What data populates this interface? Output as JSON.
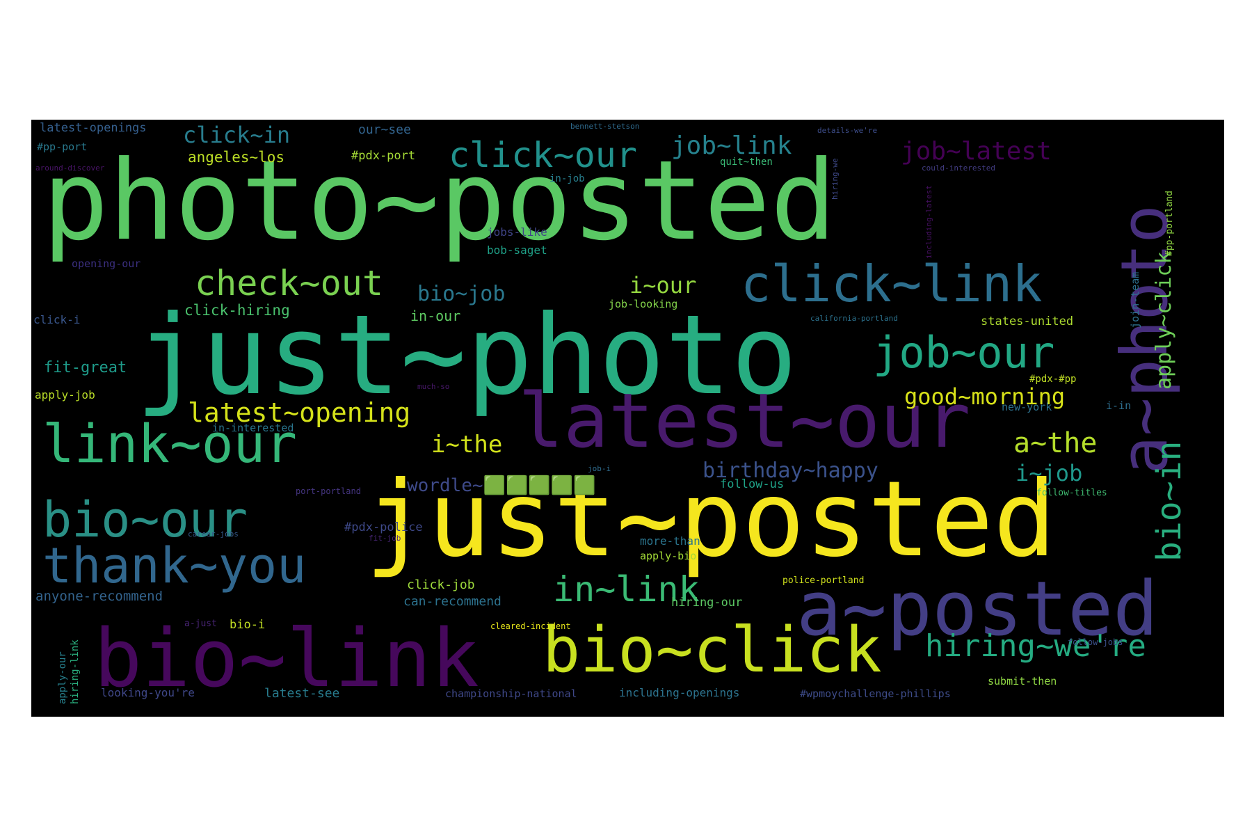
{
  "colors": {
    "background": "#000000",
    "page": "#ffffff"
  },
  "words": [
    {
      "text": "photo~posted",
      "color": "#5ac864"
    },
    {
      "text": "just~photo",
      "color": "#27ad81"
    },
    {
      "text": "just~posted",
      "color": "#f5e61e"
    },
    {
      "text": "latest~our",
      "color": "#481a6c"
    },
    {
      "text": "bio~link",
      "color": "#46085c"
    },
    {
      "text": "a~posted",
      "color": "#433e85"
    },
    {
      "text": "a~photo",
      "color": "#472f7d"
    },
    {
      "text": "bio~click",
      "color": "#c8e020"
    },
    {
      "text": "click~link",
      "color": "#2d6f8e"
    },
    {
      "text": "link~our",
      "color": "#35b779"
    },
    {
      "text": "bio~our",
      "color": "#2a9086"
    },
    {
      "text": "thank~you",
      "color": "#31678e"
    },
    {
      "text": "job~our",
      "color": "#22a884"
    },
    {
      "text": "check~out",
      "color": "#7ad151"
    },
    {
      "text": "click~our",
      "color": "#21918c"
    },
    {
      "text": "in~link",
      "color": "#3bbb75"
    },
    {
      "text": "hiring~we're",
      "color": "#25ac82"
    },
    {
      "text": "latest~opening",
      "color": "#d5e21a"
    },
    {
      "text": "good~morning",
      "color": "#d8e219"
    },
    {
      "text": "bio~in",
      "color": "#29af7f"
    },
    {
      "text": "apply~click",
      "color": "#6ece58"
    },
    {
      "text": "job~latest",
      "color": "#440154"
    },
    {
      "text": "job~link",
      "color": "#26828e"
    },
    {
      "text": "click~in",
      "color": "#287d8e"
    },
    {
      "text": "bio~job",
      "color": "#2a788e"
    },
    {
      "text": "i~our",
      "color": "#95d840"
    },
    {
      "text": "a~the",
      "color": "#b5de2b"
    },
    {
      "text": "i~the",
      "color": "#d2e21b"
    },
    {
      "text": "i~job",
      "color": "#1f988b"
    },
    {
      "text": "birthday~happy",
      "color": "#3b528b"
    },
    {
      "text": "wordle~🟩🟩🟩🟩🟩",
      "color": "#3e4a89"
    },
    {
      "text": "latest-openings",
      "color": "#355f8d"
    },
    {
      "text": "our~see",
      "color": "#32648e"
    },
    {
      "text": "angeles~los",
      "color": "#bddf26"
    },
    {
      "text": "#pdx-port",
      "color": "#a5db36"
    },
    {
      "text": "#pp-port",
      "color": "#29798e"
    },
    {
      "text": "around-discover",
      "color": "#481467"
    },
    {
      "text": "in-job",
      "color": "#277f8e"
    },
    {
      "text": "quit~then",
      "color": "#3aba76"
    },
    {
      "text": "jobs-like",
      "color": "#404588"
    },
    {
      "text": "bob-saget",
      "color": "#1fa188"
    },
    {
      "text": "opening-our",
      "color": "#3b2f80"
    },
    {
      "text": "click-hiring",
      "color": "#4ac16d"
    },
    {
      "text": "click-i",
      "color": "#39568c"
    },
    {
      "text": "in-our",
      "color": "#5ec962"
    },
    {
      "text": "job-looking",
      "color": "#84d44b"
    },
    {
      "text": "states-united",
      "color": "#addc30"
    },
    {
      "text": "join-team",
      "color": "#2d708e"
    },
    {
      "text": "#pp-portland",
      "color": "#90d743"
    },
    {
      "text": "fit-great",
      "color": "#1e9b8a"
    },
    {
      "text": "much-so",
      "color": "#48186a"
    },
    {
      "text": "apply-job",
      "color": "#bade28"
    },
    {
      "text": "#pdx-#pp",
      "color": "#c0df25"
    },
    {
      "text": "new-york",
      "color": "#2c718e"
    },
    {
      "text": "i-in",
      "color": "#2e6e8e"
    },
    {
      "text": "in-interested",
      "color": "#2a768e"
    },
    {
      "text": "follow-us",
      "color": "#1fa287"
    },
    {
      "text": "#pdx-police",
      "color": "#3e4989"
    },
    {
      "text": "more-than",
      "color": "#2b758e"
    },
    {
      "text": "apply-bio",
      "color": "#a2da37"
    },
    {
      "text": "anyone-recommend",
      "color": "#33638d"
    },
    {
      "text": "click-job",
      "color": "#9dd93b"
    },
    {
      "text": "can-recommend",
      "color": "#2c728e"
    },
    {
      "text": "hiring-our",
      "color": "#5cc863"
    },
    {
      "text": "bio-i",
      "color": "#c2df23"
    },
    {
      "text": "a-just",
      "color": "#482475"
    },
    {
      "text": "looking-you're",
      "color": "#3f4788"
    },
    {
      "text": "latest-see",
      "color": "#287c8e"
    },
    {
      "text": "championship-national",
      "color": "#3f4889"
    },
    {
      "text": "including-openings",
      "color": "#2c738e"
    },
    {
      "text": "#wpmoychallenge-phillips",
      "color": "#3e4c8a"
    },
    {
      "text": "submit-then",
      "color": "#8fd744"
    },
    {
      "text": "apply-our",
      "color": "#27808e"
    },
    {
      "text": "hiring-link",
      "color": "#2ab07f"
    },
    {
      "text": "police-portland",
      "color": "#d0e11c"
    },
    {
      "text": "cleared-incident",
      "color": "#e5e419"
    },
    {
      "text": "follow-jobs",
      "color": "#3b518b"
    },
    {
      "text": "job-i",
      "color": "#2f6c8e"
    },
    {
      "text": "fit-job",
      "color": "#482576"
    },
    {
      "text": "port-portland",
      "color": "#453581"
    },
    {
      "text": "follow-titles",
      "color": "#40bd72"
    },
    {
      "text": "career-jobs",
      "color": "#365c8d"
    },
    {
      "text": "bennett-stetson",
      "color": "#2f6b8e"
    },
    {
      "text": "details-we're",
      "color": "#3d4d8a"
    },
    {
      "text": "could-interested",
      "color": "#433d84"
    },
    {
      "text": "including-latest",
      "color": "#471063"
    },
    {
      "text": "hiring-we",
      "color": "#3f4a8a"
    },
    {
      "text": "california-portland",
      "color": "#2c728e"
    }
  ]
}
